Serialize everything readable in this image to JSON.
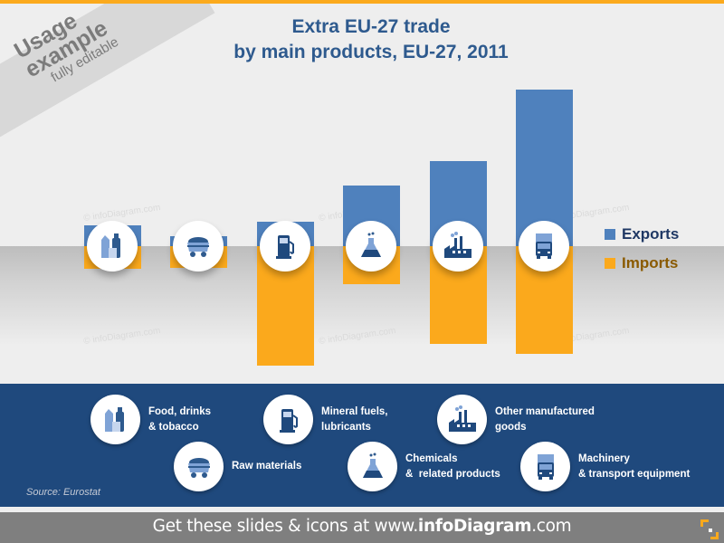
{
  "banner": {
    "line1": "Usage",
    "line2": "example",
    "line3": "fully editable"
  },
  "title": {
    "line1": "Extra EU-27 trade",
    "line2": "by main products, EU-27, 2011"
  },
  "watermark": "© infoDiagram.com",
  "legend": [
    {
      "label": "Exports",
      "color": "#4f81bd",
      "text_color": "#1f3864"
    },
    {
      "label": "Imports",
      "color": "#fba91c",
      "text_color": "#8a5a00"
    }
  ],
  "chart_data": {
    "type": "bar",
    "title": "Extra EU-27 trade by main products, EU-27, 2011",
    "categories": [
      "Food, drinks & tobacco",
      "Raw materials",
      "Mineral fuels, lubricants",
      "Chemicals & related products",
      "Other manufactured goods",
      "Machinery & transport equipment"
    ],
    "series": [
      {
        "name": "Exports",
        "values": [
          23,
          11,
          27,
          67,
          94,
          173
        ],
        "color": "#4f81bd",
        "direction": "up"
      },
      {
        "name": "Imports",
        "values": [
          25,
          24,
          132,
          42,
          108,
          119
        ],
        "color": "#fba91c",
        "direction": "down"
      }
    ],
    "units": "relative pixel height (no axis shown)",
    "grid": false,
    "legend_position": "right"
  },
  "panel": {
    "items": [
      {
        "icon": "food-drinks-icon",
        "line1": "Food, drinks",
        "line2": "& tobacco"
      },
      {
        "icon": "coal-cart-icon",
        "line1": "Raw materials",
        "line2": ""
      },
      {
        "icon": "fuel-pump-icon",
        "line1": "Mineral fuels,",
        "line2": "lubricants"
      },
      {
        "icon": "flask-icon",
        "line1": "Chemicals",
        "line2": "&  related products"
      },
      {
        "icon": "factory-icon",
        "line1": "Other manufactured",
        "line2": "goods"
      },
      {
        "icon": "truck-icon",
        "line1": "Machinery",
        "line2": "& transport equipment"
      }
    ],
    "source": "Source:  Eurostat"
  },
  "footer": {
    "pre": "Get these slides & icons at www.",
    "brand": "infoDiagram",
    "post": ".com"
  }
}
